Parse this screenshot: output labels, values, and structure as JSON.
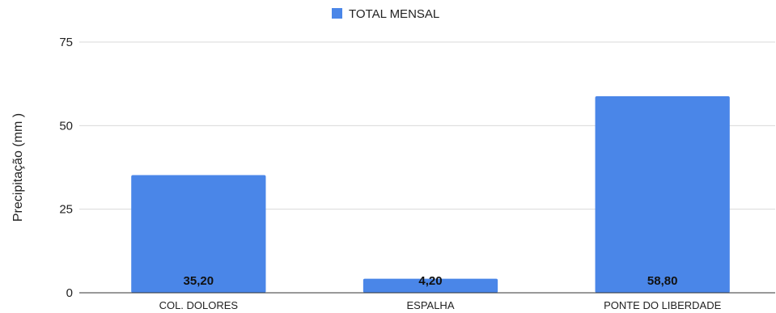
{
  "chart_data": {
    "type": "bar",
    "categories": [
      "COL. DOLORES",
      "ESPALHA",
      "PONTE DO LIBERDADE"
    ],
    "series": [
      {
        "name": "TOTAL MENSAL",
        "values": [
          35.2,
          4.2,
          58.8
        ],
        "color": "#4a86e8"
      }
    ],
    "data_labels": [
      "35,20",
      "4,20",
      "58,80"
    ],
    "ylabel": "Precipitação (mm )",
    "xlabel": "",
    "ylim": [
      0,
      75
    ],
    "yticks": [
      0,
      25,
      50,
      75
    ],
    "grid": true,
    "legend_position": "top-center"
  }
}
